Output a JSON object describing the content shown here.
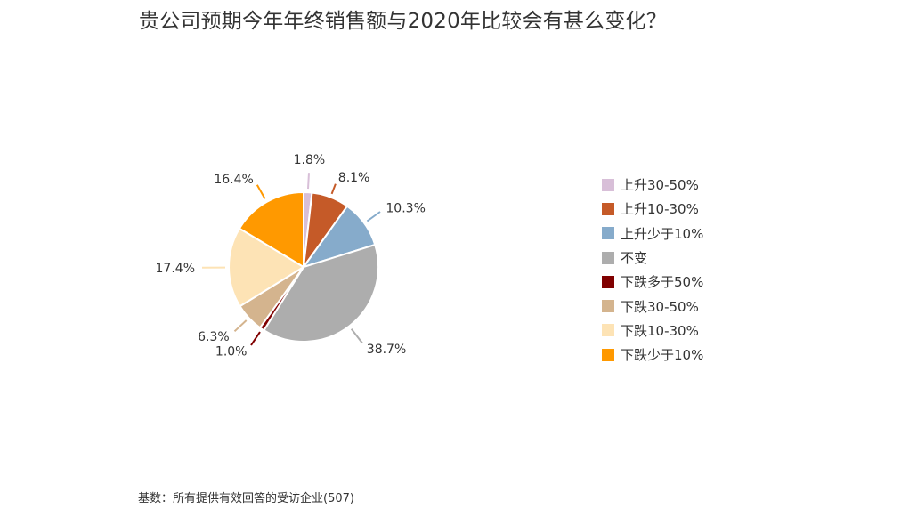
{
  "title": "贵公司预期今年年终销售额与2020年比较会有甚么变化？",
  "footnote": "基数：所有提供有效回答的受访企业(507)",
  "chart_data": {
    "type": "pie",
    "title": "贵公司预期今年年终销售额与2020年比较会有甚么变化？",
    "legend_position": "right",
    "series": [
      {
        "name": "上升30-50%",
        "value": 1.8,
        "label": "1.8%",
        "color": "#D8BFD8"
      },
      {
        "name": "上升10-30%",
        "value": 8.1,
        "label": "8.1%",
        "color": "#C55A28"
      },
      {
        "name": "上升少于10%",
        "value": 10.3,
        "label": "10.3%",
        "color": "#86ABCB"
      },
      {
        "name": "不变",
        "value": 38.7,
        "label": "38.7%",
        "color": "#ADADAD"
      },
      {
        "name": "下跌多于50%",
        "value": 1.0,
        "label": "1.0%",
        "color": "#800000"
      },
      {
        "name": "下跌30-50%",
        "value": 6.3,
        "label": "6.3%",
        "color": "#D4B48E"
      },
      {
        "name": "下跌10-30%",
        "value": 17.4,
        "label": "17.4%",
        "color": "#FDE3B5"
      },
      {
        "name": "下跌少于10%",
        "value": 16.4,
        "label": "16.4%",
        "color": "#FF9900"
      }
    ]
  }
}
